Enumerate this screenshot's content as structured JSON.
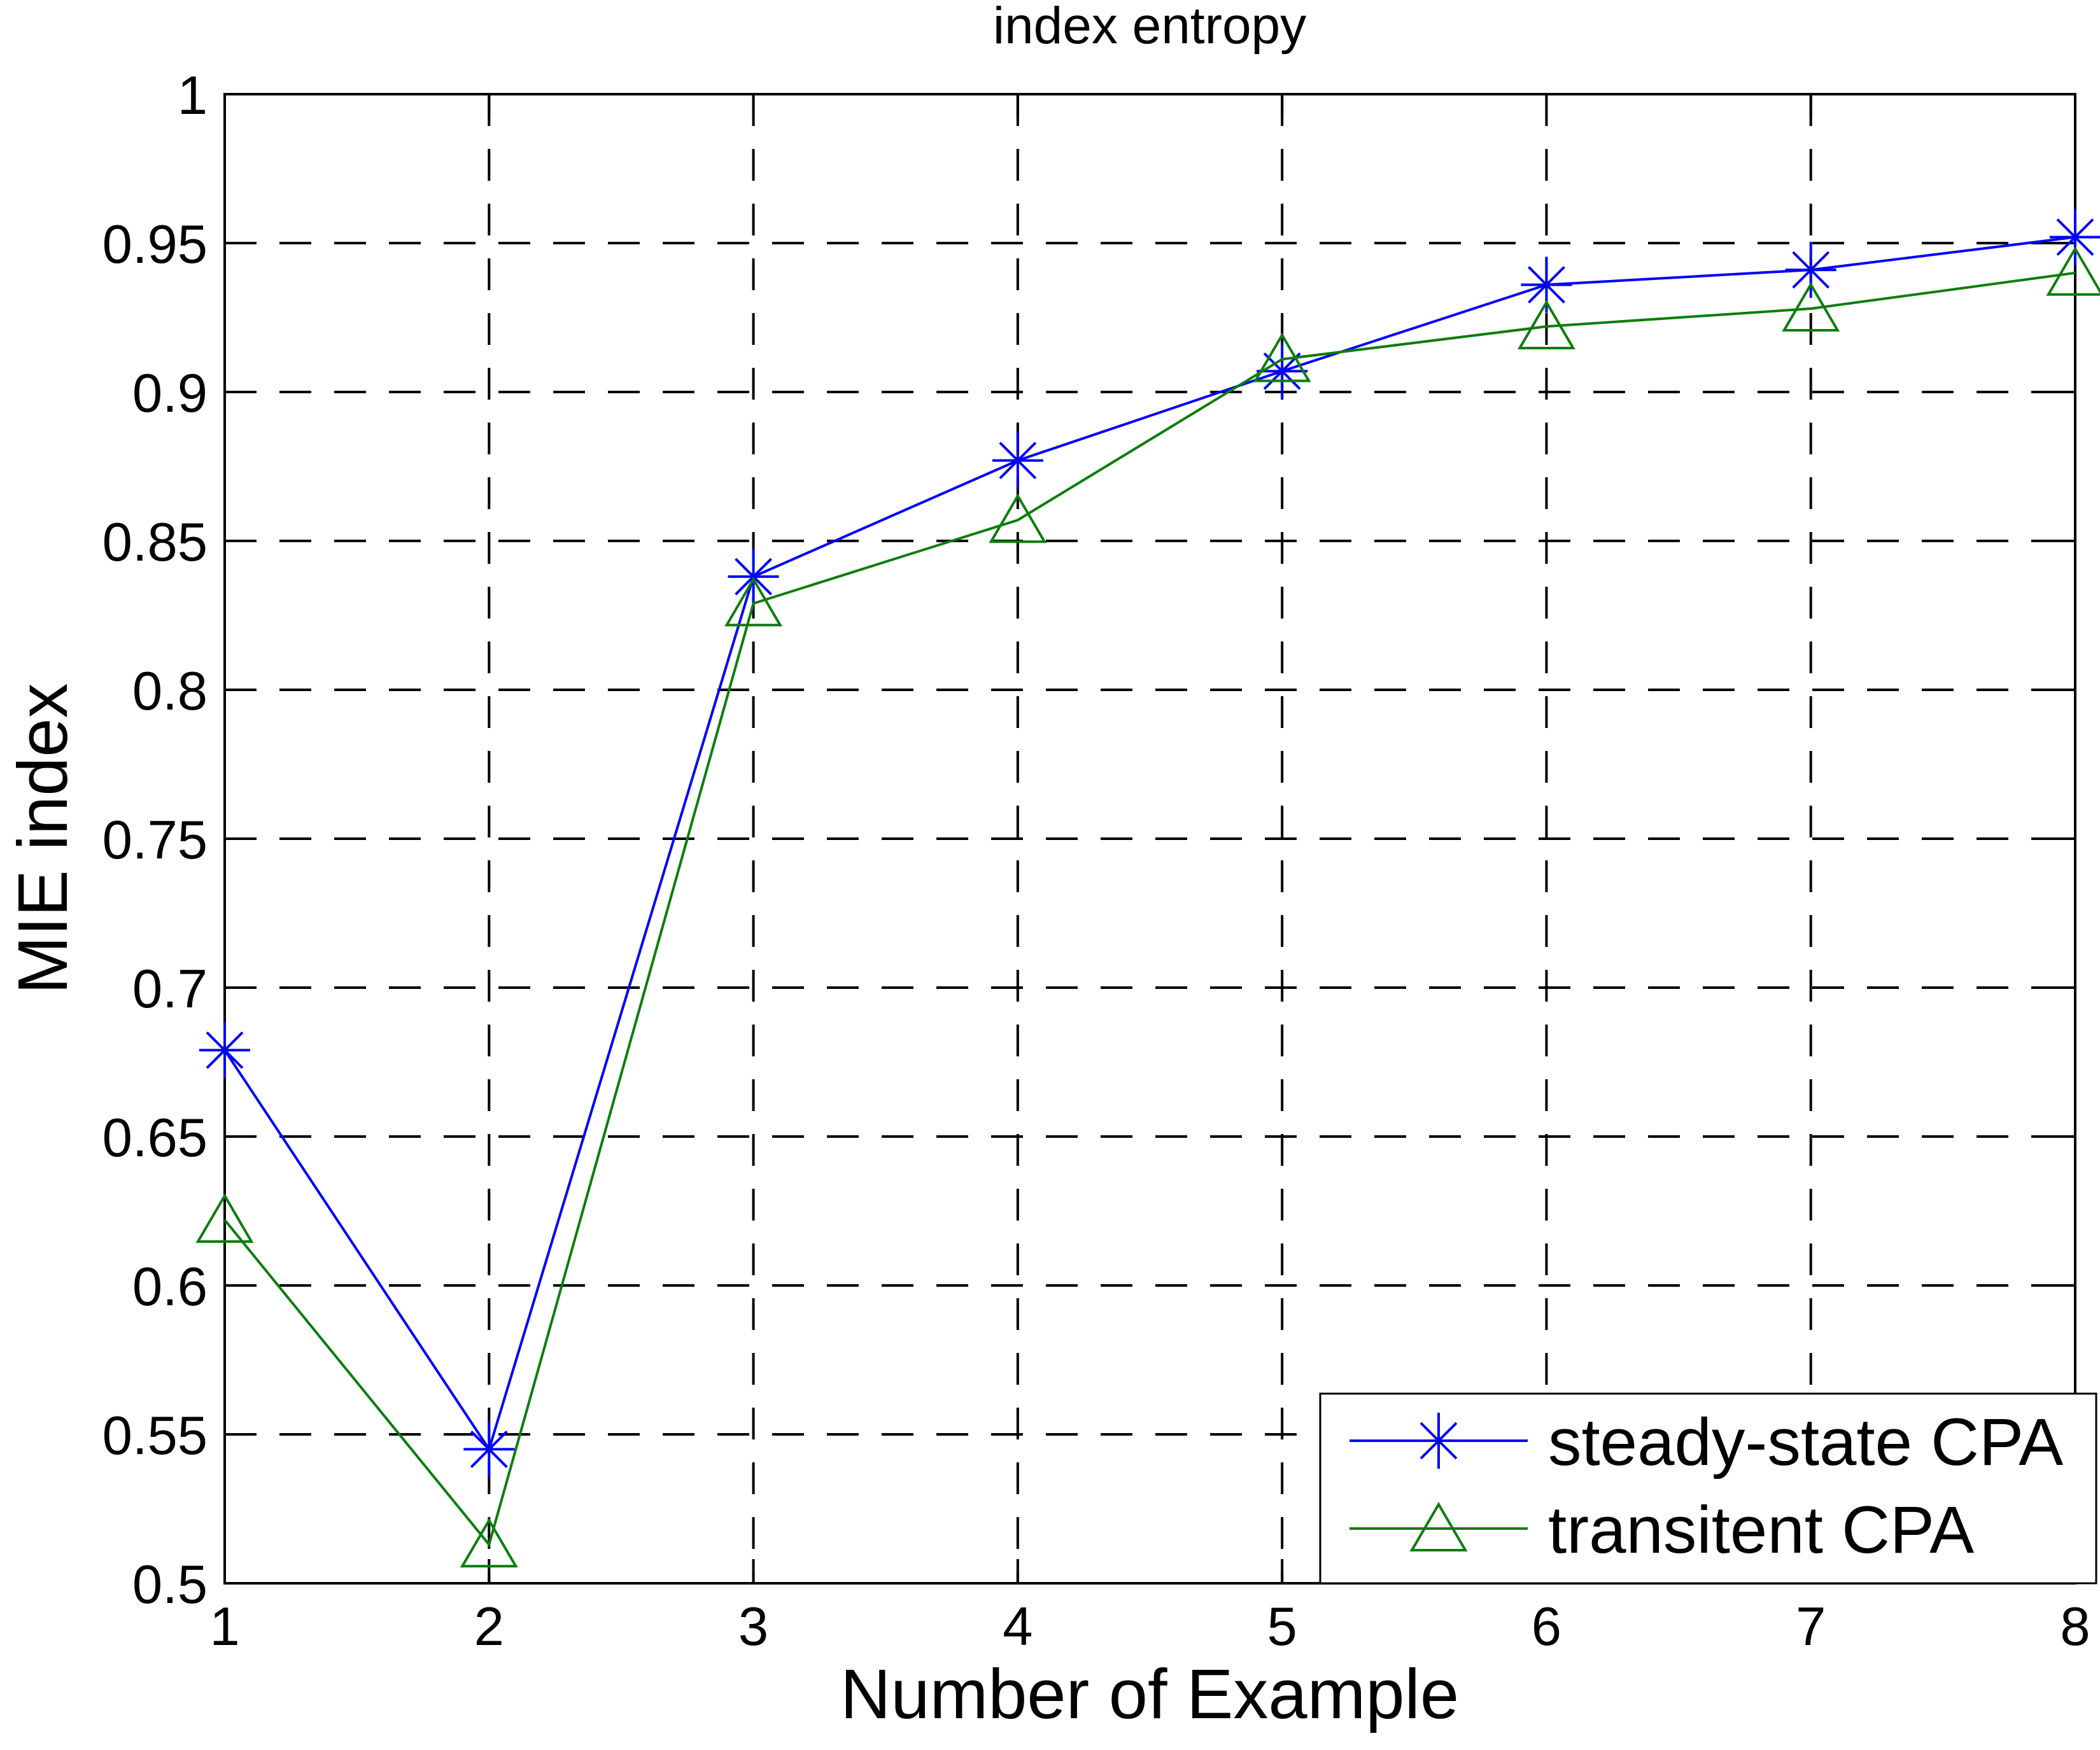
{
  "figure": {
    "background": "#FFFFFF"
  },
  "chart_data": {
    "type": "line",
    "title": "index entropy",
    "xlabel": "Number of Example",
    "ylabel": "MIE index",
    "xlim": [
      1,
      8
    ],
    "ylim": [
      0.5,
      1.0
    ],
    "grid": "dashed",
    "grid_color": "#000000",
    "axis_color": "#000000",
    "text_color": "#000000",
    "legend_position": "bottom-right",
    "x": [
      1,
      2,
      3,
      4,
      5,
      6,
      7,
      8
    ],
    "xtick_labels": [
      "1",
      "2",
      "3",
      "4",
      "5",
      "6",
      "7",
      "8"
    ],
    "ytick_values": [
      1.0,
      0.95,
      0.9,
      0.85,
      0.8,
      0.75,
      0.7,
      0.65,
      0.6,
      0.55,
      0.5
    ],
    "ytick_labels": [
      "1",
      "0.95",
      "0.9",
      "0.85",
      "0.8",
      "0.75",
      "0.7",
      "0.65",
      "0.6",
      "0.55",
      "0.5"
    ],
    "series": [
      {
        "name": "steady-state CPA",
        "color": "#0000FF",
        "marker": "asterisk",
        "values": [
          0.679,
          0.545,
          0.838,
          0.877,
          0.907,
          0.936,
          0.941,
          0.952
        ]
      },
      {
        "name": "transitent CPA",
        "color": "#0B7E0B",
        "marker": "triangle-up",
        "values": [
          0.622,
          0.513,
          0.829,
          0.857,
          0.911,
          0.922,
          0.928,
          0.94
        ]
      }
    ]
  }
}
